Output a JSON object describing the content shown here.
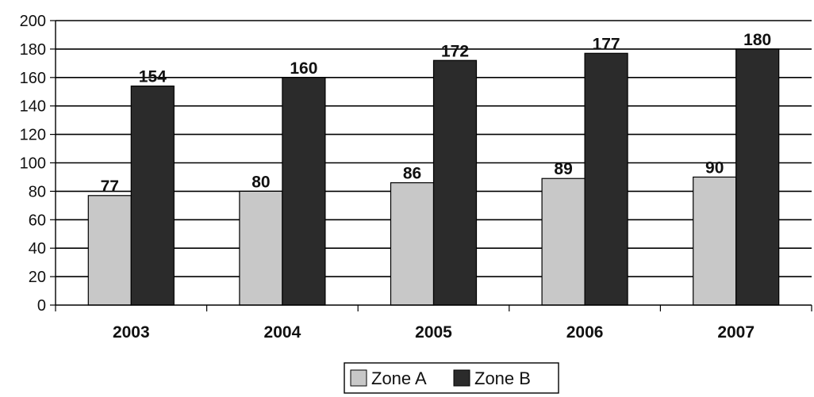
{
  "chart_data": {
    "type": "bar",
    "categories": [
      "2003",
      "2004",
      "2005",
      "2006",
      "2007"
    ],
    "series": [
      {
        "name": "Zone A",
        "values": [
          77,
          80,
          86,
          89,
          90
        ],
        "color": "#c8c8c8"
      },
      {
        "name": "Zone B",
        "values": [
          154,
          160,
          172,
          177,
          180
        ],
        "color": "#2b2b2b"
      }
    ],
    "title": "",
    "xlabel": "",
    "ylabel": "",
    "ylim": [
      0,
      200
    ],
    "yticks": [
      0,
      20,
      40,
      60,
      80,
      100,
      120,
      140,
      160,
      180,
      200
    ],
    "grid": true,
    "legend_position": "bottom",
    "data_labels": true
  }
}
